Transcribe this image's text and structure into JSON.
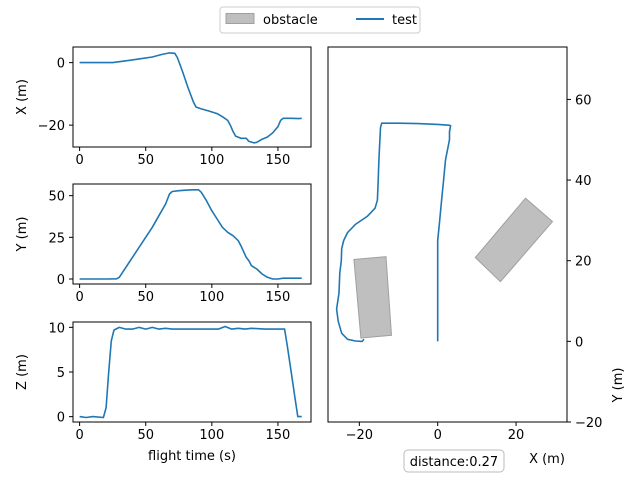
{
  "legend": {
    "entries": [
      {
        "label": "obstacle",
        "kind": "patch",
        "color": "#bfbfbf",
        "edge": "#a0a0a0"
      },
      {
        "label": "test",
        "kind": "line",
        "color": "#1f77b4"
      }
    ],
    "placement": "top-center"
  },
  "annotation": {
    "text": "distance:0.27"
  },
  "chart_data": [
    {
      "type": "line",
      "panel": "x-vs-time",
      "xlabel": "",
      "ylabel": "X (m)",
      "xlim": [
        -5,
        175
      ],
      "ylim": [
        -27,
        5
      ],
      "xticks": [
        0,
        50,
        100,
        150
      ],
      "yticks": [
        0,
        -20
      ],
      "series": [
        {
          "name": "test",
          "color": "#1f77b4",
          "points": [
            [
              0,
              0
            ],
            [
              10,
              0
            ],
            [
              25,
              0
            ],
            [
              35,
              0.6
            ],
            [
              45,
              1.2
            ],
            [
              55,
              1.8
            ],
            [
              62,
              2.6
            ],
            [
              68,
              3.1
            ],
            [
              72,
              3.0
            ],
            [
              74,
              1.5
            ],
            [
              78,
              -3
            ],
            [
              82,
              -8
            ],
            [
              86,
              -12.5
            ],
            [
              88,
              -14.2
            ],
            [
              92,
              -14.8
            ],
            [
              98,
              -15.5
            ],
            [
              104,
              -16.3
            ],
            [
              108,
              -17.3
            ],
            [
              112,
              -18.5
            ],
            [
              114,
              -20
            ],
            [
              116,
              -22
            ],
            [
              118,
              -23.5
            ],
            [
              122,
              -24.2
            ],
            [
              126,
              -24.2
            ],
            [
              128,
              -25.2
            ],
            [
              132,
              -25.7
            ],
            [
              134,
              -25.5
            ],
            [
              138,
              -24.5
            ],
            [
              142,
              -23.8
            ],
            [
              146,
              -22.5
            ],
            [
              150,
              -20.5
            ],
            [
              152,
              -18.5
            ],
            [
              154,
              -17.8
            ],
            [
              160,
              -17.8
            ],
            [
              166,
              -17.9
            ],
            [
              168,
              -17.8
            ]
          ]
        }
      ]
    },
    {
      "type": "line",
      "panel": "y-vs-time",
      "xlabel": "",
      "ylabel": "Y (m)",
      "xlim": [
        -5,
        175
      ],
      "ylim": [
        -3,
        57
      ],
      "xticks": [
        0,
        50,
        100,
        150
      ],
      "yticks": [
        0,
        25,
        50
      ],
      "series": [
        {
          "name": "test",
          "color": "#1f77b4",
          "points": [
            [
              0,
              0
            ],
            [
              10,
              0
            ],
            [
              20,
              0
            ],
            [
              28,
              0.1
            ],
            [
              30,
              1
            ],
            [
              35,
              7
            ],
            [
              40,
              13
            ],
            [
              45,
              19
            ],
            [
              50,
              25
            ],
            [
              55,
              31
            ],
            [
              60,
              38
            ],
            [
              65,
              45
            ],
            [
              68,
              51
            ],
            [
              70,
              52.5
            ],
            [
              75,
              53
            ],
            [
              80,
              53.3
            ],
            [
              85,
              53.5
            ],
            [
              90,
              53.5
            ],
            [
              92,
              52
            ],
            [
              96,
              47
            ],
            [
              100,
              41
            ],
            [
              104,
              36
            ],
            [
              108,
              31
            ],
            [
              112,
              28
            ],
            [
              116,
              26
            ],
            [
              120,
              23
            ],
            [
              122,
              20
            ],
            [
              126,
              13
            ],
            [
              128,
              11
            ],
            [
              130,
              8
            ],
            [
              134,
              6
            ],
            [
              138,
              3
            ],
            [
              142,
              1
            ],
            [
              146,
              0
            ],
            [
              150,
              0
            ],
            [
              154,
              0.5
            ],
            [
              160,
              0.5
            ],
            [
              168,
              0.5
            ]
          ]
        }
      ]
    },
    {
      "type": "line",
      "panel": "z-vs-time",
      "xlabel": "flight time (s)",
      "ylabel": "Z (m)",
      "xlim": [
        -5,
        175
      ],
      "ylim": [
        -0.6,
        10.6
      ],
      "xticks": [
        0,
        50,
        100,
        150
      ],
      "yticks": [
        0,
        5,
        10
      ],
      "series": [
        {
          "name": "test",
          "color": "#1f77b4",
          "points": [
            [
              0,
              0
            ],
            [
              5,
              -0.1
            ],
            [
              10,
              0
            ],
            [
              18,
              -0.1
            ],
            [
              20,
              1
            ],
            [
              22,
              5
            ],
            [
              24,
              8.5
            ],
            [
              26,
              9.7
            ],
            [
              30,
              10
            ],
            [
              35,
              9.8
            ],
            [
              40,
              9.8
            ],
            [
              45,
              10
            ],
            [
              50,
              9.8
            ],
            [
              55,
              10
            ],
            [
              60,
              9.8
            ],
            [
              65,
              9.9
            ],
            [
              70,
              9.8
            ],
            [
              80,
              9.8
            ],
            [
              90,
              9.8
            ],
            [
              100,
              9.8
            ],
            [
              105,
              9.8
            ],
            [
              110,
              10.1
            ],
            [
              115,
              9.8
            ],
            [
              120,
              9.9
            ],
            [
              125,
              9.8
            ],
            [
              130,
              9.9
            ],
            [
              140,
              9.8
            ],
            [
              150,
              9.8
            ],
            [
              155,
              9.8
            ],
            [
              157,
              8
            ],
            [
              160,
              5
            ],
            [
              163,
              2
            ],
            [
              165,
              0
            ],
            [
              168,
              0
            ]
          ]
        }
      ]
    },
    {
      "type": "line",
      "panel": "xy-trajectory",
      "xlabel": "X (m)",
      "ylabel": "Y (m)",
      "xlim": [
        -28,
        33
      ],
      "ylim": [
        -20,
        73
      ],
      "xticks": [
        -20,
        0,
        20
      ],
      "yticks": [
        -20,
        0,
        20,
        40,
        60
      ],
      "series": [
        {
          "name": "test",
          "color": "#1f77b4",
          "points": [
            [
              0,
              0
            ],
            [
              0,
              1
            ],
            [
              0,
              5
            ],
            [
              0,
              10
            ],
            [
              0,
              15
            ],
            [
              0,
              20
            ],
            [
              0,
              25
            ],
            [
              0.5,
              30
            ],
            [
              1,
              35
            ],
            [
              1.5,
              40
            ],
            [
              2,
              45
            ],
            [
              3,
              50
            ],
            [
              3,
              52
            ],
            [
              3.3,
              53.5
            ],
            [
              2.8,
              53.6
            ],
            [
              0,
              53.8
            ],
            [
              -5,
              54
            ],
            [
              -10,
              54.1
            ],
            [
              -14.3,
              54.1
            ],
            [
              -14.6,
              53
            ],
            [
              -15,
              45
            ],
            [
              -15.2,
              40
            ],
            [
              -15.4,
              35
            ],
            [
              -16,
              33
            ],
            [
              -18,
              31
            ],
            [
              -21,
              29
            ],
            [
              -23,
              27
            ],
            [
              -24,
              25
            ],
            [
              -24.5,
              23
            ],
            [
              -24.6,
              20
            ],
            [
              -25,
              17
            ],
            [
              -25.2,
              12
            ],
            [
              -25.8,
              8
            ],
            [
              -25.4,
              5
            ],
            [
              -24.5,
              2
            ],
            [
              -23,
              0.5
            ],
            [
              -21,
              0.1
            ],
            [
              -19.3,
              0
            ],
            [
              -18.8,
              0.5
            ]
          ]
        }
      ],
      "obstacles": [
        {
          "label": "obstacle",
          "corners": [
            [
              -21.4,
              20.3
            ],
            [
              -19.6,
              0.8
            ],
            [
              -11.8,
              1.5
            ],
            [
              -13.2,
              21
            ]
          ]
        },
        {
          "label": "obstacle",
          "corners": [
            [
              9.6,
              20.8
            ],
            [
              16,
              14.8
            ],
            [
              29.3,
              29.7
            ],
            [
              22.4,
              35.5
            ]
          ]
        }
      ]
    }
  ]
}
